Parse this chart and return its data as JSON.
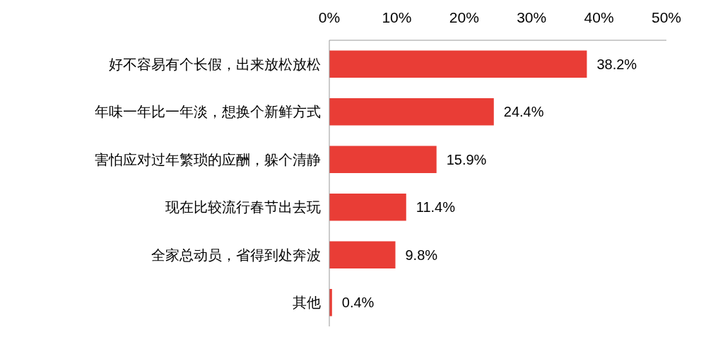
{
  "chart_data": {
    "type": "bar",
    "orientation": "horizontal",
    "categories": [
      "好不容易有个长假，出来放松放松",
      "年味一年比一年淡，想换个新鲜方式",
      "害怕应对过年繁琐的应酬，躲个清静",
      "现在比较流行春节出去玩",
      "全家总动员，省得到处奔波",
      "其他"
    ],
    "values": [
      38.2,
      24.4,
      15.9,
      11.4,
      9.8,
      0.4
    ],
    "value_labels": [
      "38.2%",
      "24.4%",
      "15.9%",
      "11.4%",
      "9.8%",
      "0.4%"
    ],
    "color": "#e93d36",
    "xlim": [
      0,
      50
    ],
    "xticks": [
      {
        "value": 0,
        "label": "0%"
      },
      {
        "value": 10,
        "label": "10%"
      },
      {
        "value": 20,
        "label": "20%"
      },
      {
        "value": 30,
        "label": "30%"
      },
      {
        "value": 40,
        "label": "40%"
      },
      {
        "value": 50,
        "label": "50%"
      }
    ]
  }
}
